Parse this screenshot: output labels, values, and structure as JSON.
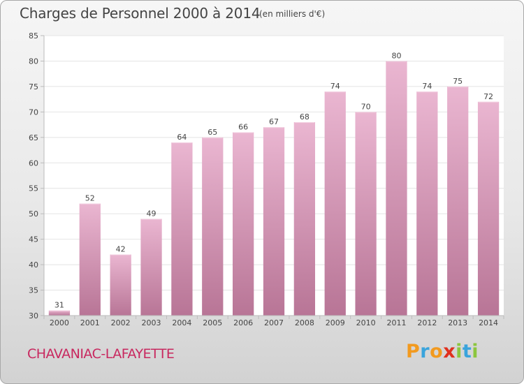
{
  "title": "Charges de Personnel 2000 à 2014",
  "subtitle": "(en milliers d'€)",
  "commune": "CHAVANIAC-LAFAYETTE",
  "logo": {
    "letters": [
      "P",
      "r",
      "o",
      "x",
      "i",
      "t",
      "i"
    ],
    "colors": [
      "#f29a1f",
      "#3aa4dc",
      "#f29a1f",
      "#e0301e",
      "#8cc63e",
      "#3aa4dc",
      "#8cc63e"
    ]
  },
  "colors": {
    "bar_top": "#eab6d1",
    "bar_bottom": "#b87596",
    "bar_light": "#f3cfe1",
    "plot_bg": "#ffffff",
    "grid": "#e4e4e4",
    "axis": "#bbbbbb"
  },
  "chart_data": {
    "type": "bar",
    "categories": [
      "2000",
      "2001",
      "2002",
      "2003",
      "2004",
      "2005",
      "2006",
      "2007",
      "2008",
      "2009",
      "2010",
      "2011",
      "2012",
      "2013",
      "2014"
    ],
    "values": [
      31,
      52,
      42,
      49,
      64,
      65,
      66,
      67,
      68,
      74,
      70,
      80,
      74,
      75,
      72
    ],
    "ylim": [
      30,
      85
    ],
    "yticks": [
      30,
      35,
      40,
      45,
      50,
      55,
      60,
      65,
      70,
      75,
      80,
      85
    ],
    "grid": true,
    "data_labels": true
  }
}
